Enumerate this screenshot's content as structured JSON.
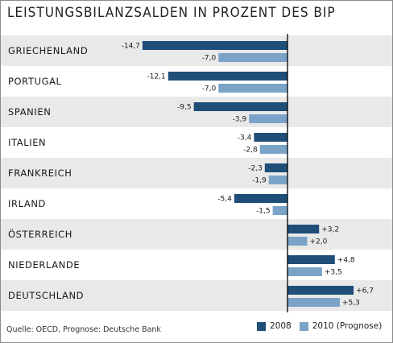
{
  "chart_data": {
    "type": "bar",
    "orientation": "horizontal",
    "title": "LEISTUNGSBILANZSALDEN IN PROZENT DES BIP",
    "categories": [
      "GRIECHENLAND",
      "PORTUGAL",
      "SPANIEN",
      "ITALIEN",
      "FRANKREICH",
      "IRLAND",
      "ÖSTERREICH",
      "NIEDERLANDE",
      "DEUTSCHLAND"
    ],
    "series": [
      {
        "name": "2008",
        "color": "#1f4e79",
        "values": [
          -14.7,
          -12.1,
          -9.5,
          -3.4,
          -2.3,
          -5.4,
          3.2,
          4.8,
          6.7
        ],
        "labels": [
          "-14,7",
          "-12,1",
          "-9,5",
          "-3,4",
          "-2,3",
          "-5,4",
          "+3,2",
          "+4,8",
          "+6,7"
        ]
      },
      {
        "name": "2010 (Prognose)",
        "color": "#7aa3c7",
        "values": [
          -7.0,
          -7.0,
          -3.9,
          -2.8,
          -1.9,
          -1.5,
          2.0,
          3.5,
          5.3
        ],
        "labels": [
          "-7,0",
          "-7,0",
          "-3,9",
          "-2,8",
          "-1,9",
          "-1,5",
          "+2,0",
          "+3,5",
          "+5,3"
        ]
      }
    ],
    "grid": false,
    "legend_position": "bottom-right",
    "source": "Quelle: OECD, Prognose: Deutsche Bank"
  }
}
